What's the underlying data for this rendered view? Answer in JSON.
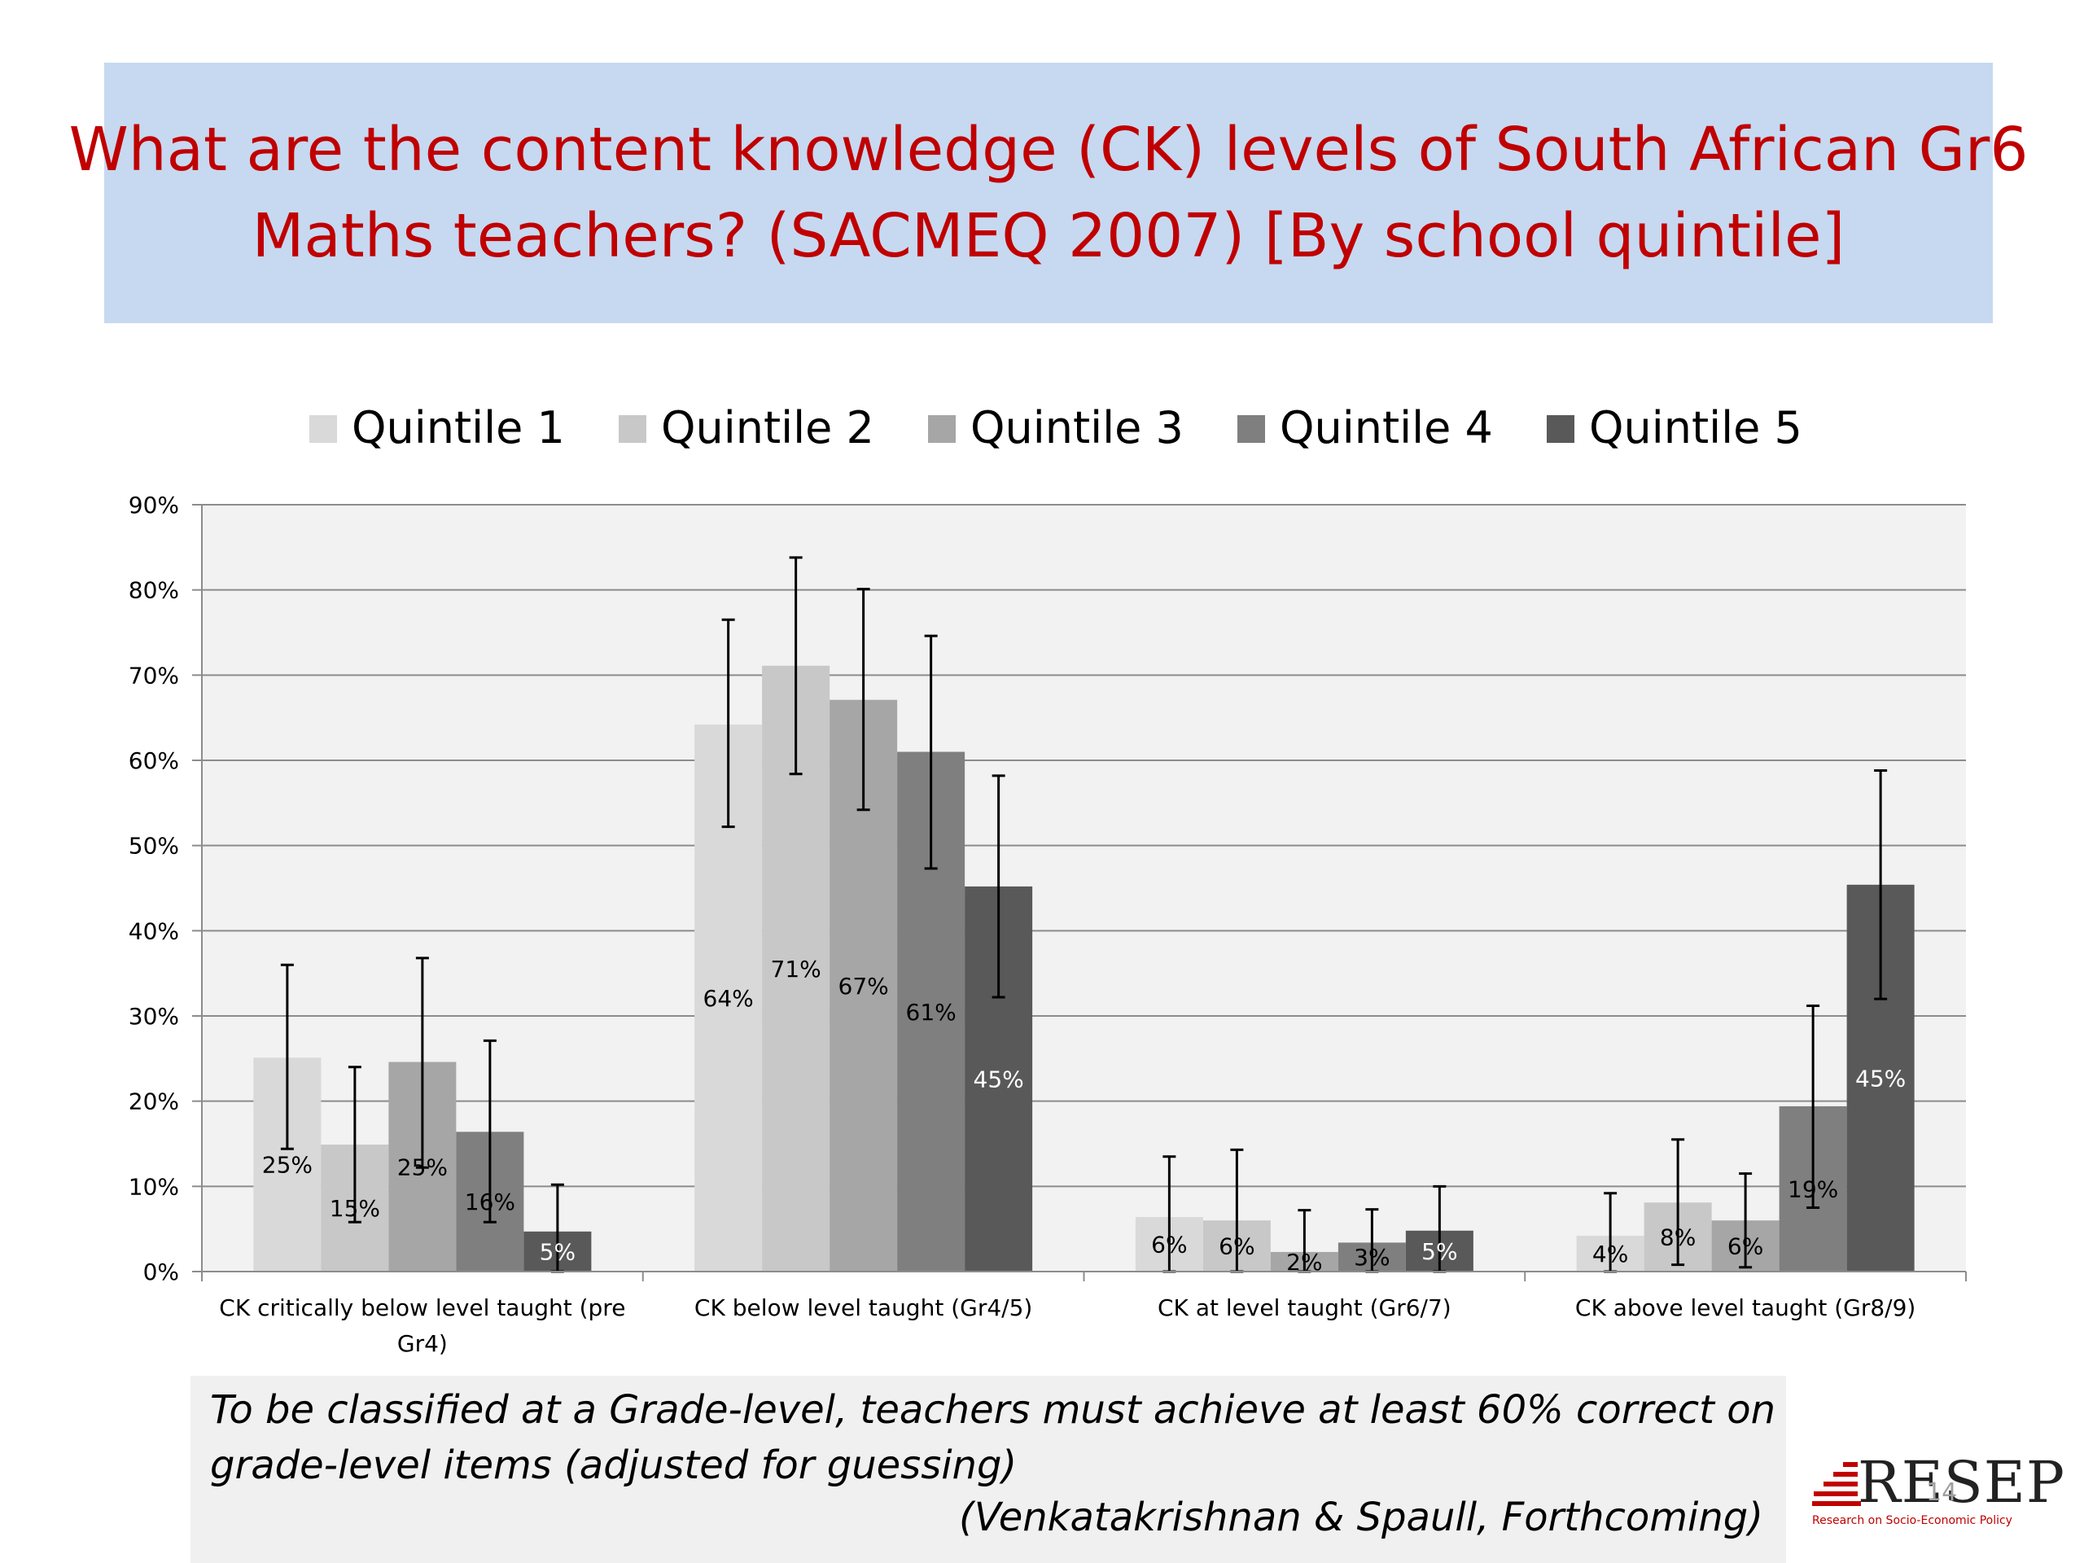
{
  "slide": {
    "title_lines": [
      "What are the content knowledge (CK) levels of South African Gr6",
      "Maths teachers? (SACMEQ 2007) [By school quintile]"
    ],
    "note_lines": [
      "To be classified at a Grade-level, teachers must achieve at least 60% correct on",
      "grade-level items (adjusted for guessing)"
    ],
    "citation": "(Venkatakrishnan & Spaull, Forthcoming)",
    "logo": {
      "text": "RESEP",
      "subtitle": "Research on Socio-Economic Policy",
      "color": "#c00000"
    },
    "page_number": "14"
  },
  "chart_data": {
    "type": "bar",
    "title": "",
    "xlabel": "",
    "ylabel": "",
    "ylim": [
      0,
      90
    ],
    "y_ticks": [
      "0%",
      "10%",
      "20%",
      "30%",
      "40%",
      "50%",
      "60%",
      "70%",
      "80%",
      "90%"
    ],
    "categories": [
      [
        "CK critically below level taught  (pre",
        "Gr4)"
      ],
      [
        "CK below level taught (Gr4/5)"
      ],
      [
        "CK at level taught (Gr6/7)"
      ],
      [
        "CK above level taught (Gr8/9)"
      ]
    ],
    "legend_position": "top",
    "grid": true,
    "series": [
      {
        "name": "Quintile 1",
        "color": "#d9d9d9",
        "label_color": "#000000",
        "values": [
          25.1,
          64.2,
          6.4,
          4.2
        ],
        "labels": [
          "25%",
          "64%",
          "6%",
          "4%"
        ],
        "error_low": [
          14.4,
          52.2,
          0,
          0
        ],
        "error_high": [
          36.0,
          76.5,
          13.5,
          9.2
        ]
      },
      {
        "name": "Quintile 2",
        "color": "#c8c8c8",
        "label_color": "#000000",
        "values": [
          14.9,
          71.1,
          6.0,
          8.1
        ],
        "labels": [
          "15%",
          "71%",
          "6%",
          "8%"
        ],
        "error_low": [
          5.8,
          58.4,
          0,
          0.8
        ],
        "error_high": [
          24.0,
          83.8,
          14.3,
          15.5
        ]
      },
      {
        "name": "Quintile 3",
        "color": "#a6a6a6",
        "label_color": "#000000",
        "values": [
          24.6,
          67.1,
          2.3,
          6.0
        ],
        "labels": [
          "25%",
          "67%",
          "2%",
          "6%"
        ],
        "error_low": [
          12.2,
          54.2,
          0,
          0.5
        ],
        "error_high": [
          36.8,
          80.1,
          7.2,
          11.5
        ]
      },
      {
        "name": "Quintile 4",
        "color": "#7f7f7f",
        "label_color": "#000000",
        "values": [
          16.4,
          61.0,
          3.4,
          19.4
        ],
        "labels": [
          "16%",
          "61%",
          "3%",
          "19%"
        ],
        "error_low": [
          5.8,
          47.3,
          0,
          7.5
        ],
        "error_high": [
          27.1,
          74.6,
          7.3,
          31.2
        ]
      },
      {
        "name": "Quintile 5",
        "color": "#595959",
        "label_color": "#ffffff",
        "values": [
          4.7,
          45.2,
          4.8,
          45.4
        ],
        "labels": [
          "5%",
          "45%",
          "5%",
          "45%"
        ],
        "error_low": [
          0,
          32.2,
          0,
          32.0
        ],
        "error_high": [
          10.2,
          58.2,
          10.0,
          58.8
        ]
      }
    ],
    "plot_background": "#f2f2f2",
    "grid_color": "#8c8c8c"
  }
}
